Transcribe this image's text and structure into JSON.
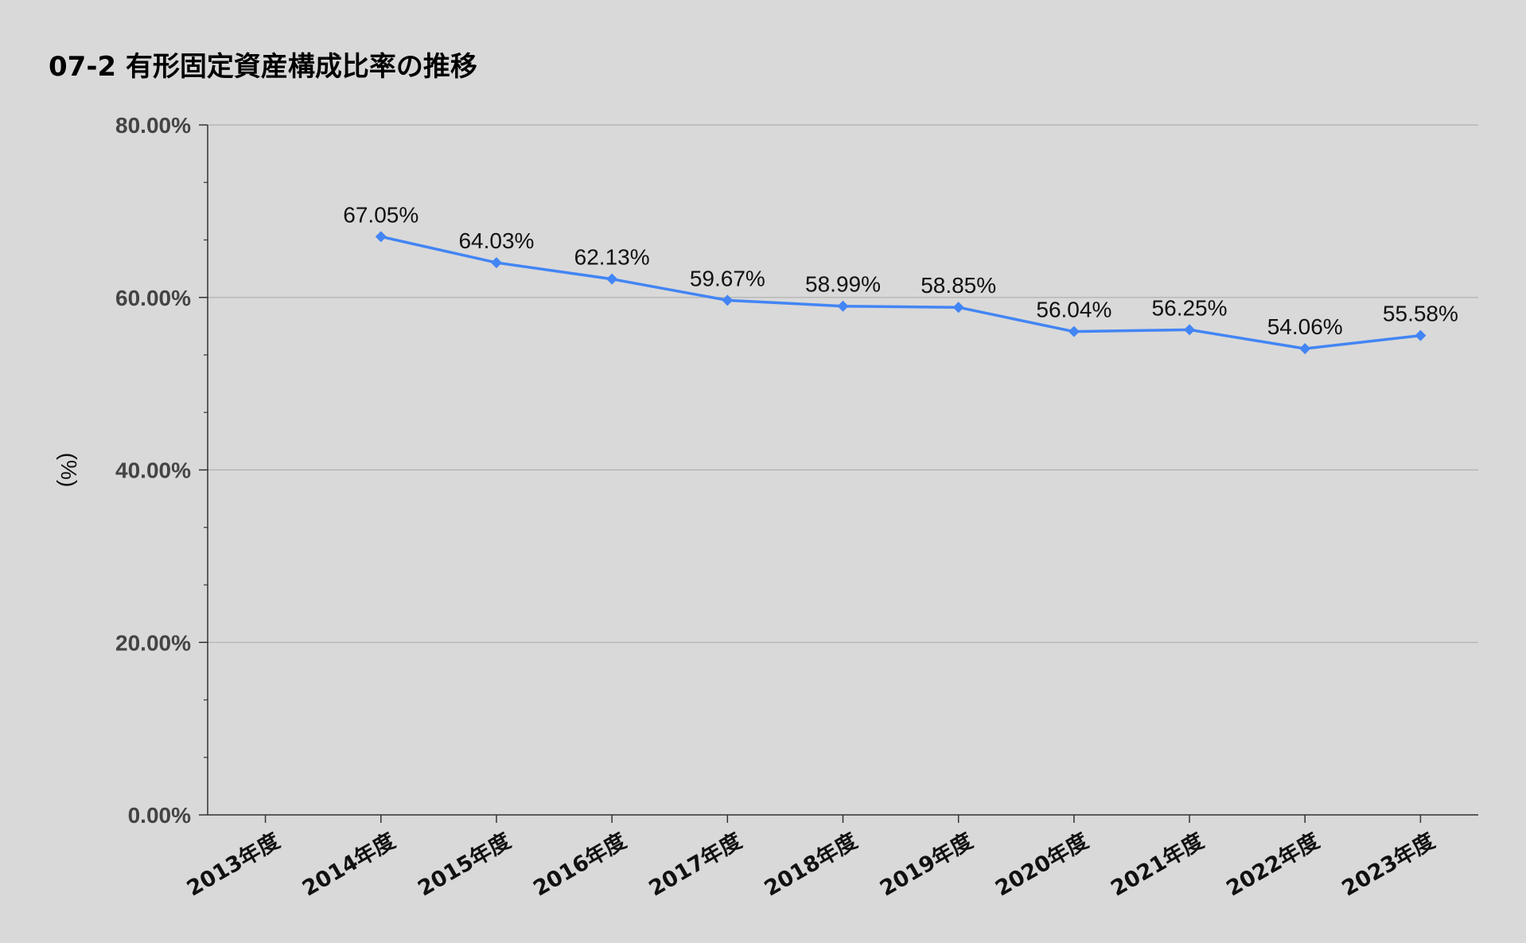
{
  "chart_data": {
    "type": "line",
    "title": "07-2 有形固定資産構成比率の推移",
    "xlabel": "",
    "ylabel": "(%)",
    "categories": [
      "2013年度",
      "2014年度",
      "2015年度",
      "2016年度",
      "2017年度",
      "2018年度",
      "2019年度",
      "2020年度",
      "2021年度",
      "2022年度",
      "2023年度"
    ],
    "series": [
      {
        "values": [
          null,
          67.05,
          64.03,
          62.13,
          59.67,
          58.99,
          58.85,
          56.04,
          56.25,
          54.06,
          55.58
        ],
        "labels": [
          "",
          "67.05%",
          "64.03%",
          "62.13%",
          "59.67%",
          "58.99%",
          "58.85%",
          "56.04%",
          "56.25%",
          "54.06%",
          "55.58%"
        ],
        "color": "#4285f4",
        "marker": "diamond"
      }
    ],
    "yticks": [
      0,
      20,
      40,
      60,
      80
    ],
    "ytick_labels": [
      "0.00%",
      "20.00%",
      "40.00%",
      "60.00%",
      "80.00%"
    ],
    "ylim": [
      0,
      80
    ],
    "grid": true,
    "legend": "none"
  },
  "colors": {
    "background": "#d9d9d9",
    "line": "#4285f4",
    "grid": "#b0b0b0",
    "axis": "#333333"
  }
}
